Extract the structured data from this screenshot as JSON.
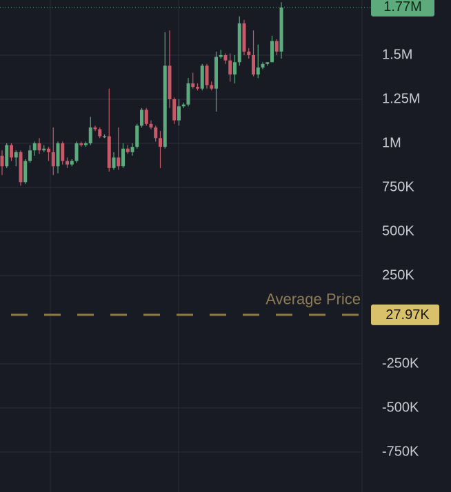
{
  "chart_data": {
    "type": "candlestick",
    "up_color": "#5dab7c",
    "down_color": "#c65a69",
    "ylim": [
      -976562,
      1812500
    ],
    "yticks": [
      {
        "value": 1500000,
        "label": "1.5M"
      },
      {
        "value": 1250000,
        "label": "1.25M"
      },
      {
        "value": 1000000,
        "label": "1M"
      },
      {
        "value": 750000,
        "label": "750K"
      },
      {
        "value": 500000,
        "label": "500K"
      },
      {
        "value": 250000,
        "label": "250K"
      },
      {
        "value": -250000,
        "label": "-250K"
      },
      {
        "value": -500000,
        "label": "-500K"
      },
      {
        "value": -750000,
        "label": "-750K"
      }
    ],
    "grid": true,
    "last_price": {
      "value": 1770000,
      "label": "1.77M"
    },
    "average_price": {
      "name": "Average Price",
      "value": 27970,
      "label": "27.97K",
      "color": "#d9c06a"
    },
    "open": [
      930000,
      870000,
      990000,
      920000,
      950000,
      780000,
      900000,
      960000,
      1000000,
      960000,
      970000,
      950000,
      870000,
      1000000,
      900000,
      880000,
      900000,
      1000000,
      990000,
      1000000,
      1090000,
      1080000,
      1040000,
      1040000,
      860000,
      920000,
      870000,
      970000,
      950000,
      980000,
      1100000,
      1190000,
      1110000,
      1090000,
      1030000,
      980000,
      1440000,
      1250000,
      1130000,
      1210000,
      1220000,
      1340000,
      1320000,
      1310000,
      1440000,
      1330000,
      1310000,
      1490000,
      1500000,
      1470000,
      1390000,
      1460000,
      1680000,
      1520000,
      1500000,
      1390000,
      1430000,
      1450000,
      1460000,
      1580000,
      1520000
    ],
    "high": [
      960000,
      1000000,
      1000000,
      960000,
      960000,
      910000,
      990000,
      1010000,
      1030000,
      990000,
      980000,
      1090000,
      1010000,
      1010000,
      920000,
      910000,
      1010000,
      1010000,
      1010000,
      1150000,
      1100000,
      1090000,
      1050000,
      1310000,
      950000,
      1090000,
      1000000,
      990000,
      1000000,
      1110000,
      1200000,
      1200000,
      1130000,
      1100000,
      1070000,
      1630000,
      1640000,
      1260000,
      1250000,
      1230000,
      1370000,
      1400000,
      1340000,
      1450000,
      1450000,
      1350000,
      1520000,
      1530000,
      1510000,
      1510000,
      1500000,
      1720000,
      1700000,
      1540000,
      1640000,
      1560000,
      1460000,
      1460000,
      1610000,
      1590000,
      1800000
    ],
    "low": [
      820000,
      860000,
      900000,
      870000,
      760000,
      770000,
      890000,
      930000,
      940000,
      950000,
      900000,
      820000,
      830000,
      880000,
      860000,
      870000,
      890000,
      980000,
      980000,
      990000,
      1070000,
      1030000,
      1030000,
      840000,
      850000,
      850000,
      860000,
      940000,
      930000,
      970000,
      1090000,
      1100000,
      1080000,
      1010000,
      860000,
      970000,
      1200000,
      1110000,
      1100000,
      1200000,
      1210000,
      1310000,
      1300000,
      1300000,
      1310000,
      1300000,
      1180000,
      1480000,
      1450000,
      1350000,
      1340000,
      1440000,
      1500000,
      1480000,
      1380000,
      1370000,
      1420000,
      1440000,
      1460000,
      1500000,
      1480000
    ],
    "close": [
      870000,
      990000,
      920000,
      950000,
      780000,
      900000,
      960000,
      1000000,
      960000,
      970000,
      950000,
      870000,
      1000000,
      900000,
      880000,
      900000,
      1000000,
      990000,
      1000000,
      1090000,
      1080000,
      1040000,
      1040000,
      860000,
      920000,
      870000,
      970000,
      950000,
      980000,
      1100000,
      1190000,
      1110000,
      1090000,
      1030000,
      980000,
      1440000,
      1250000,
      1130000,
      1210000,
      1220000,
      1340000,
      1320000,
      1310000,
      1440000,
      1330000,
      1310000,
      1490000,
      1500000,
      1470000,
      1390000,
      1460000,
      1680000,
      1520000,
      1500000,
      1390000,
      1430000,
      1450000,
      1460000,
      1580000,
      1520000,
      1770000
    ]
  }
}
